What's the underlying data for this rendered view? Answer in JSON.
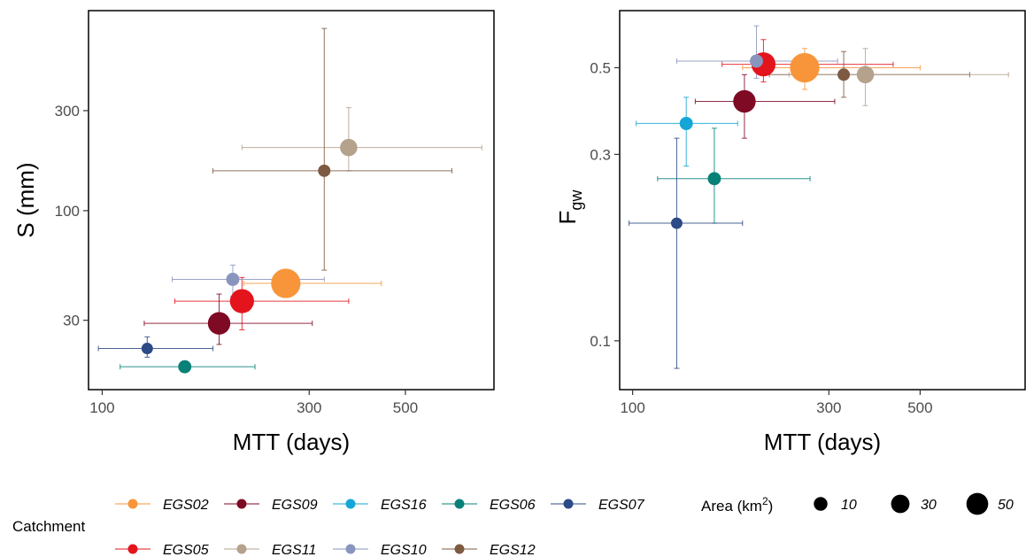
{
  "legend": {
    "catchment_title": "Catchment",
    "area_title": "Area (km",
    "area_title_sup": "2",
    "area_title_close": ")",
    "area_sizes": [
      {
        "label": "10",
        "value": 10
      },
      {
        "label": "30",
        "value": 30
      },
      {
        "label": "50",
        "value": 50
      }
    ]
  },
  "chart_data": [
    {
      "type": "scatter",
      "panel": "left",
      "xlabel": "MTT (days)",
      "ylabel": "S (mm)",
      "x_scale": "log",
      "y_scale": "log",
      "xlim": [
        93,
        800
      ],
      "ylim": [
        14,
        900
      ],
      "xticks": [
        {
          "v": 100,
          "label": "100"
        },
        {
          "v": 300,
          "label": "300"
        },
        {
          "v": 500,
          "label": "500"
        }
      ],
      "yticks": [
        {
          "v": 30,
          "label": "30"
        },
        {
          "v": 100,
          "label": "100"
        },
        {
          "v": 300,
          "label": "300"
        }
      ],
      "grid": false,
      "series": [
        {
          "name": "EGS02",
          "color": "#F8953A",
          "x": 265,
          "y": 45,
          "x_err": [
            212,
            440
          ],
          "y_err": [
            41,
            49
          ],
          "area_km2": 50
        },
        {
          "name": "EGS05",
          "color": "#E3141C",
          "x": 210,
          "y": 37,
          "x_err": [
            147,
            370
          ],
          "y_err": [
            27,
            48
          ],
          "area_km2": 30
        },
        {
          "name": "EGS10",
          "color": "#8A95BE",
          "x": 200,
          "y": 47,
          "x_err": [
            145,
            325
          ],
          "y_err": [
            39,
            55
          ],
          "area_km2": 5
        },
        {
          "name": "EGS09",
          "color": "#7E0A24",
          "x": 186,
          "y": 29,
          "x_err": [
            125,
            305
          ],
          "y_err": [
            23,
            40
          ],
          "area_km2": 25
        },
        {
          "name": "EGS07",
          "color": "#2C4A86",
          "x": 127,
          "y": 22,
          "x_err": [
            98,
            180
          ],
          "y_err": [
            20,
            25
          ],
          "area_km2": 3
        },
        {
          "name": "EGS06",
          "color": "#078177",
          "x": 155,
          "y": 18,
          "x_err": [
            110,
            225
          ],
          "y_err": [
            17,
            19
          ],
          "area_km2": 5
        },
        {
          "name": "EGS11",
          "color": "#B5A28C",
          "x": 370,
          "y": 200,
          "x_err": [
            210,
            750
          ],
          "y_err": [
            155,
            310
          ],
          "area_km2": 12
        },
        {
          "name": "EGS12",
          "color": "#7D5A41",
          "x": 325,
          "y": 155,
          "x_err": [
            180,
            640
          ],
          "y_err": [
            52,
            740
          ],
          "area_km2": 4
        }
      ]
    },
    {
      "type": "scatter",
      "panel": "right",
      "xlabel": "MTT (days)",
      "ylabel": "F",
      "ylabel_sub": "gw",
      "x_scale": "log",
      "y_scale": "log",
      "xlim": [
        93,
        900
      ],
      "ylim": [
        0.075,
        0.7
      ],
      "xticks": [
        {
          "v": 100,
          "label": "100"
        },
        {
          "v": 300,
          "label": "300"
        },
        {
          "v": 500,
          "label": "500"
        }
      ],
      "yticks": [
        {
          "v": 0.1,
          "label": "0.1"
        },
        {
          "v": 0.3,
          "label": "0.3"
        },
        {
          "v": 0.5,
          "label": "0.5"
        }
      ],
      "grid": false,
      "series": [
        {
          "name": "EGS02",
          "color": "#F8953A",
          "x": 262,
          "y": 0.5,
          "x_err": [
            185,
            500
          ],
          "y_err": [
            0.44,
            0.56
          ],
          "area_km2": 50
        },
        {
          "name": "EGS05",
          "color": "#E3141C",
          "x": 208,
          "y": 0.51,
          "x_err": [
            165,
            430
          ],
          "y_err": [
            0.46,
            0.59
          ],
          "area_km2": 30
        },
        {
          "name": "EGS10",
          "color": "#8A95BE",
          "x": 200,
          "y": 0.52,
          "x_err": [
            128,
            315
          ],
          "y_err": [
            0.47,
            0.64
          ],
          "area_km2": 5
        },
        {
          "name": "EGS09",
          "color": "#7E0A24",
          "x": 187,
          "y": 0.41,
          "x_err": [
            142,
            310
          ],
          "y_err": [
            0.33,
            0.48
          ],
          "area_km2": 25
        },
        {
          "name": "EGS16",
          "color": "#14A6D6",
          "x": 135,
          "y": 0.36,
          "x_err": [
            102,
            180
          ],
          "y_err": [
            0.28,
            0.42
          ],
          "area_km2": 5
        },
        {
          "name": "EGS06",
          "color": "#078177",
          "x": 158,
          "y": 0.26,
          "x_err": [
            115,
            270
          ],
          "y_err": [
            0.2,
            0.35
          ],
          "area_km2": 5
        },
        {
          "name": "EGS07",
          "color": "#2C4A86",
          "x": 128,
          "y": 0.2,
          "x_err": [
            98,
            185
          ],
          "y_err": [
            0.085,
            0.33
          ],
          "area_km2": 3
        },
        {
          "name": "EGS12",
          "color": "#7D5A41",
          "x": 326,
          "y": 0.48,
          "x_err": [
            215,
            660
          ],
          "y_err": [
            0.42,
            0.55
          ],
          "area_km2": 4
        },
        {
          "name": "EGS11",
          "color": "#B5A28C",
          "x": 368,
          "y": 0.48,
          "x_err": [
            240,
            820
          ],
          "y_err": [
            0.4,
            0.56
          ],
          "area_km2": 12
        }
      ]
    }
  ],
  "legend_catchments": [
    {
      "name": "EGS02",
      "color": "#F8953A"
    },
    {
      "name": "EGS09",
      "color": "#7E0A24"
    },
    {
      "name": "EGS16",
      "color": "#14A6D6"
    },
    {
      "name": "EGS06",
      "color": "#078177"
    },
    {
      "name": "EGS07",
      "color": "#2C4A86"
    },
    {
      "name": "EGS05",
      "color": "#E3141C"
    },
    {
      "name": "EGS11",
      "color": "#B5A28C"
    },
    {
      "name": "EGS10",
      "color": "#8A95BE"
    },
    {
      "name": "EGS12",
      "color": "#7D5A41"
    }
  ]
}
